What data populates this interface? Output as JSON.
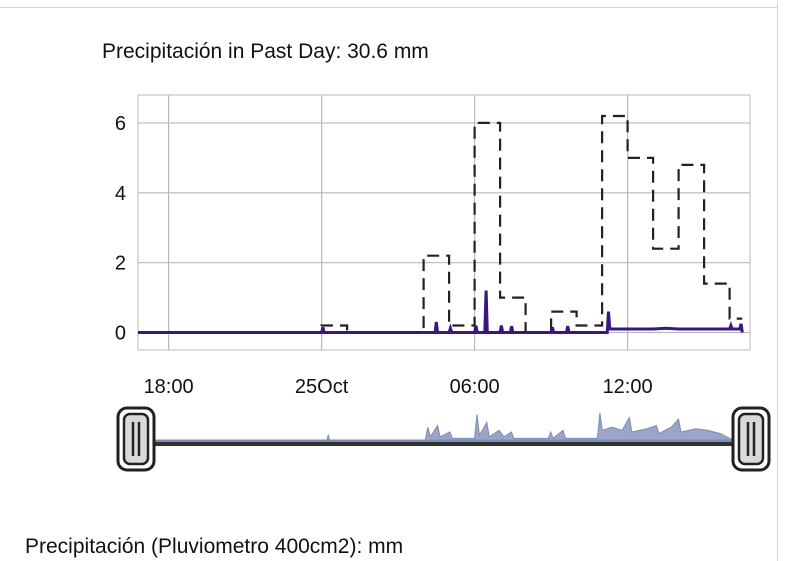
{
  "header": {
    "title": "Precipitación in Past Day: 30.6 mm"
  },
  "footer": {
    "label": "Precipitación (Pluviometro 400cm2): mm"
  },
  "colors": {
    "grid": "#b9b9b9",
    "rate_series": "#222222",
    "amount_series": "#3a1780",
    "navigator_fill": "#9aa5c8",
    "navigator_line": "#7d8bb5",
    "handle": "#222222"
  },
  "chart_data": {
    "type": "line",
    "title": "Precipitación in Past Day: 30.6 mm",
    "xlabel": "",
    "ylabel": "",
    "x_unit": "hours from 25 Oct 00:00",
    "xlim": [
      -7.2,
      16.8
    ],
    "ylim": [
      -0.5,
      6.8
    ],
    "y_ticks": [
      0,
      2,
      4,
      6
    ],
    "x_ticks": [
      {
        "x": -6,
        "label": "18:00"
      },
      {
        "x": 0,
        "label": "25Oct"
      },
      {
        "x": 6,
        "label": "06:00"
      },
      {
        "x": 12,
        "label": "12:00"
      }
    ],
    "grid": true,
    "series": [
      {
        "style": "dashed-step",
        "points": [
          [
            -7.2,
            0
          ],
          [
            0,
            0
          ],
          [
            0,
            0.2
          ],
          [
            1,
            0.2
          ],
          [
            1,
            0
          ],
          [
            4,
            0
          ],
          [
            4,
            2.2
          ],
          [
            5,
            2.2
          ],
          [
            5,
            0.2
          ],
          [
            6,
            0.2
          ],
          [
            6,
            6
          ],
          [
            7,
            6
          ],
          [
            7,
            1
          ],
          [
            8,
            1
          ],
          [
            8,
            0
          ],
          [
            9,
            0
          ],
          [
            9,
            0.6
          ],
          [
            10,
            0.6
          ],
          [
            10,
            0.2
          ],
          [
            11,
            0.2
          ],
          [
            11,
            6.2
          ],
          [
            12,
            6.2
          ],
          [
            12,
            5
          ],
          [
            13,
            5
          ],
          [
            13,
            2.4
          ],
          [
            14,
            2.4
          ],
          [
            14,
            4.8
          ],
          [
            15,
            4.8
          ],
          [
            15,
            1.4
          ],
          [
            16,
            1.4
          ],
          [
            16,
            0.4
          ],
          [
            16.5,
            0.4
          ]
        ]
      },
      {
        "style": "solid-spikes",
        "points": [
          [
            -7.2,
            0
          ],
          [
            0,
            0
          ],
          [
            0.05,
            0.15
          ],
          [
            0.1,
            0
          ],
          [
            4.45,
            0
          ],
          [
            4.5,
            0.3
          ],
          [
            4.55,
            0
          ],
          [
            5,
            0
          ],
          [
            5.05,
            0.12
          ],
          [
            5.1,
            0
          ],
          [
            6,
            0
          ],
          [
            6.05,
            0.2
          ],
          [
            6.1,
            0
          ],
          [
            6.4,
            0
          ],
          [
            6.45,
            1.2
          ],
          [
            6.5,
            0
          ],
          [
            7,
            0
          ],
          [
            7.05,
            0.2
          ],
          [
            7.1,
            0
          ],
          [
            7.4,
            0
          ],
          [
            7.45,
            0.18
          ],
          [
            7.5,
            0
          ],
          [
            9,
            0
          ],
          [
            9.05,
            0.15
          ],
          [
            9.1,
            0
          ],
          [
            9.6,
            0
          ],
          [
            9.65,
            0.18
          ],
          [
            9.7,
            0
          ],
          [
            11.2,
            0
          ],
          [
            11.25,
            0.6
          ],
          [
            11.3,
            0.1
          ],
          [
            11.6,
            0.1
          ],
          [
            12,
            0.1
          ],
          [
            13,
            0.1
          ],
          [
            13.5,
            0.12
          ],
          [
            14,
            0.1
          ],
          [
            15,
            0.1
          ],
          [
            16,
            0.1
          ],
          [
            16.05,
            0.2
          ],
          [
            16.1,
            0.1
          ],
          [
            16.4,
            0.1
          ],
          [
            16.45,
            0.25
          ],
          [
            16.5,
            0
          ]
        ]
      }
    ],
    "navigator": {
      "points": [
        [
          -7.2,
          0
        ],
        [
          0,
          0
        ],
        [
          0.05,
          0.3
        ],
        [
          0.1,
          0
        ],
        [
          4,
          0
        ],
        [
          4.1,
          0.8
        ],
        [
          4.2,
          0.2
        ],
        [
          4.5,
          0.9
        ],
        [
          4.6,
          0.2
        ],
        [
          5,
          0.5
        ],
        [
          5.1,
          0.1
        ],
        [
          6,
          0.1
        ],
        [
          6.1,
          1.6
        ],
        [
          6.2,
          0.3
        ],
        [
          6.5,
          1.1
        ],
        [
          6.6,
          0.2
        ],
        [
          7,
          0.6
        ],
        [
          7.2,
          0.2
        ],
        [
          7.5,
          0.5
        ],
        [
          7.6,
          0.1
        ],
        [
          9,
          0.1
        ],
        [
          9.1,
          0.5
        ],
        [
          9.2,
          0.1
        ],
        [
          9.6,
          0.6
        ],
        [
          9.7,
          0.1
        ],
        [
          11,
          0.1
        ],
        [
          11.1,
          1.7
        ],
        [
          11.2,
          0.6
        ],
        [
          11.6,
          0.8
        ],
        [
          12,
          0.6
        ],
        [
          12.3,
          1.4
        ],
        [
          12.4,
          0.5
        ],
        [
          13,
          0.7
        ],
        [
          13.4,
          0.9
        ],
        [
          13.5,
          0.4
        ],
        [
          14,
          0.8
        ],
        [
          14.3,
          1.3
        ],
        [
          14.4,
          0.5
        ],
        [
          15,
          0.7
        ],
        [
          15.5,
          0.6
        ],
        [
          16,
          0.4
        ],
        [
          16.5,
          0
        ]
      ]
    }
  }
}
